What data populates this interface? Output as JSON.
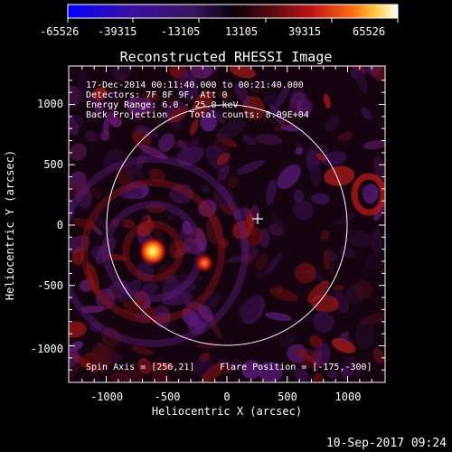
{
  "colorbar": {
    "ticks": [
      "-65526",
      "-39315",
      "-13105",
      "13105",
      "39315",
      "65526"
    ],
    "stops": [
      "#0000ff",
      "#3a0fa8",
      "#3a1560",
      "#000000",
      "#5a0a10",
      "#c01414",
      "#ff6a10",
      "#ffd24a",
      "#ffffff"
    ]
  },
  "plot": {
    "title": "Reconstructed RHESSI Image",
    "info": [
      "17-Dec-2014 00:11:40.000 to 00:21:40.000",
      "Detectors: 7F 8F 9F, Att 0",
      "Energy Range: 6.0 - 25.0 keV",
      "Back Projection    Total counts: 8.09E+04"
    ],
    "spin_axis": "Spin Axis = [256,21]",
    "flare_position": "Flare Position = [-175,-300]",
    "xlabel": "Heliocentric X (arcsec)",
    "ylabel": "Heliocentric Y (arcsec)",
    "xticks": [
      "-1000",
      "-500",
      "0",
      "500",
      "1000"
    ],
    "yticks": [
      "1000",
      "500",
      "0",
      "-500",
      "-1000"
    ]
  },
  "timestamp": "10-Sep-2017 09:24"
}
